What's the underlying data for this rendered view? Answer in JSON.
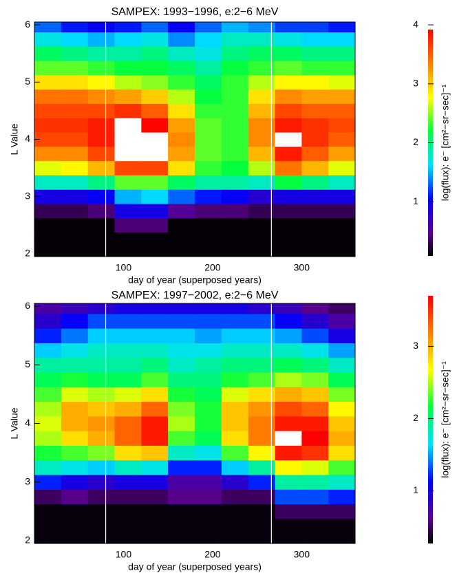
{
  "chart_data": [
    {
      "type": "heatmap",
      "title": "SAMPEX: 1993−1996, e:2−6 MeV",
      "xlabel": "day of year (superposed years)",
      "ylabel": "L Value",
      "x": [
        15,
        45,
        75,
        105,
        135,
        165,
        195,
        225,
        255,
        285,
        315,
        345
      ],
      "y": [
        2.0,
        2.25,
        2.5,
        2.75,
        3.0,
        3.25,
        3.5,
        3.75,
        4.0,
        4.25,
        4.5,
        4.75,
        5.0,
        5.25,
        5.5,
        5.75,
        6.0
      ],
      "z": [
        [
          0.1,
          0.1,
          0.1,
          0.1,
          0.1,
          0.1,
          0.1,
          0.1,
          0.1,
          0.1,
          0.1,
          0.1
        ],
        [
          0.1,
          0.1,
          0.1,
          0.1,
          0.1,
          0.1,
          0.1,
          0.1,
          0.1,
          0.1,
          0.1,
          0.1
        ],
        [
          0.1,
          0.1,
          0.1,
          0.4,
          0.4,
          0.1,
          0.1,
          0.1,
          0.1,
          0.1,
          0.1,
          0.1
        ],
        [
          0.3,
          0.3,
          0.4,
          0.9,
          0.9,
          0.5,
          0.4,
          0.4,
          0.3,
          0.3,
          0.3,
          0.3
        ],
        [
          0.9,
          0.9,
          1.0,
          1.5,
          1.6,
          1.3,
          1.1,
          1.0,
          0.8,
          0.9,
          0.9,
          0.9
        ],
        [
          1.8,
          1.8,
          2.0,
          2.4,
          2.4,
          2.1,
          1.9,
          1.9,
          1.8,
          2.2,
          2.0,
          1.8
        ],
        [
          2.7,
          2.8,
          3.1,
          3.6,
          3.6,
          2.9,
          2.3,
          2.2,
          2.6,
          3.4,
          3.1,
          2.7
        ],
        [
          3.3,
          3.3,
          3.6,
          4.1,
          4.1,
          3.2,
          2.4,
          2.3,
          3.1,
          3.8,
          3.5,
          3.2
        ],
        [
          3.6,
          3.6,
          3.8,
          4.3,
          4.2,
          3.3,
          2.4,
          2.3,
          3.3,
          4.0,
          3.7,
          3.5
        ],
        [
          3.7,
          3.7,
          3.8,
          4.2,
          3.9,
          3.2,
          2.4,
          2.3,
          3.3,
          3.8,
          3.7,
          3.6
        ],
        [
          3.6,
          3.6,
          3.6,
          3.7,
          3.5,
          2.9,
          2.3,
          2.3,
          3.1,
          3.6,
          3.5,
          3.5
        ],
        [
          3.4,
          3.4,
          3.3,
          3.2,
          3.0,
          2.6,
          2.2,
          2.3,
          2.9,
          3.3,
          3.2,
          3.2
        ],
        [
          2.9,
          2.9,
          2.8,
          2.6,
          2.5,
          2.3,
          2.1,
          2.3,
          2.6,
          2.8,
          2.8,
          2.7
        ],
        [
          2.4,
          2.4,
          2.3,
          2.2,
          2.2,
          2.1,
          1.9,
          2.2,
          2.3,
          2.4,
          2.3,
          2.3
        ],
        [
          2.1,
          2.0,
          1.9,
          1.9,
          2.0,
          1.8,
          1.7,
          2.0,
          2.1,
          2.1,
          2.0,
          2.0
        ],
        [
          1.7,
          1.6,
          1.5,
          1.6,
          1.7,
          1.4,
          1.6,
          1.8,
          1.8,
          1.7,
          1.6,
          1.6
        ],
        [
          1.3,
          1.1,
          1.0,
          1.1,
          1.3,
          1.0,
          1.3,
          1.5,
          1.4,
          1.2,
          1.2,
          1.1
        ]
      ],
      "xlim": [
        0,
        360
      ],
      "ylim": [
        1.95,
        6.05
      ],
      "xticks": [
        100,
        200,
        300
      ],
      "yticks": [
        2,
        3,
        4,
        5,
        6
      ],
      "vlines": [
        80,
        266
      ],
      "colorbar": {
        "label": "log(flux): e⁻ [cm²−sr−sec]⁻¹",
        "zlim": [
          0.08,
          3.92
        ],
        "zticks": [
          1,
          2,
          3,
          4
        ]
      }
    },
    {
      "type": "heatmap",
      "title": "SAMPEX: 1997−2002, e:2−6 MeV",
      "xlabel": "day of year (superposed years)",
      "ylabel": "L Value",
      "x": [
        15,
        45,
        75,
        105,
        135,
        165,
        195,
        225,
        255,
        285,
        315,
        345
      ],
      "y": [
        2.0,
        2.25,
        2.5,
        2.75,
        3.0,
        3.25,
        3.5,
        3.75,
        4.0,
        4.25,
        4.5,
        4.75,
        5.0,
        5.25,
        5.5,
        5.75,
        6.0
      ],
      "z": [
        [
          0.3,
          0.3,
          0.3,
          0.3,
          0.3,
          0.3,
          0.3,
          0.3,
          0.3,
          0.3,
          0.3,
          0.3
        ],
        [
          0.3,
          0.3,
          0.3,
          0.3,
          0.3,
          0.3,
          0.3,
          0.3,
          0.3,
          0.3,
          0.3,
          0.3
        ],
        [
          0.3,
          0.3,
          0.3,
          0.3,
          0.3,
          0.3,
          0.3,
          0.3,
          0.3,
          0.5,
          0.5,
          0.5
        ],
        [
          0.5,
          0.6,
          0.5,
          0.5,
          0.5,
          0.6,
          0.6,
          0.5,
          0.5,
          1.3,
          1.3,
          1.2
        ],
        [
          1.2,
          1.0,
          0.9,
          1.0,
          1.0,
          0.7,
          0.7,
          0.9,
          1.2,
          1.9,
          1.9,
          1.8
        ],
        [
          1.8,
          1.7,
          1.6,
          1.8,
          1.7,
          1.2,
          1.2,
          1.6,
          1.9,
          2.7,
          2.6,
          2.3
        ],
        [
          2.2,
          2.3,
          2.4,
          2.8,
          2.9,
          1.8,
          1.7,
          2.3,
          2.7,
          3.6,
          3.5,
          2.8
        ],
        [
          2.5,
          2.8,
          3.0,
          3.3,
          3.6,
          2.3,
          2.1,
          2.8,
          3.2,
          3.8,
          3.7,
          3.0
        ],
        [
          2.6,
          3.0,
          3.1,
          3.3,
          3.6,
          2.5,
          2.2,
          2.9,
          3.2,
          3.6,
          3.6,
          2.9
        ],
        [
          2.5,
          3.0,
          2.9,
          3.0,
          3.3,
          2.4,
          2.2,
          2.9,
          3.1,
          3.4,
          3.3,
          2.7
        ],
        [
          2.3,
          2.6,
          2.5,
          2.6,
          2.8,
          2.2,
          2.1,
          2.6,
          2.8,
          3.0,
          2.9,
          2.4
        ],
        [
          2.1,
          2.2,
          2.1,
          2.1,
          2.3,
          2.0,
          2.0,
          2.2,
          2.3,
          2.5,
          2.4,
          2.1
        ],
        [
          1.9,
          1.9,
          1.9,
          1.9,
          2.0,
          1.8,
          1.9,
          2.0,
          2.0,
          2.1,
          2.0,
          1.8
        ],
        [
          1.6,
          1.7,
          1.8,
          1.8,
          1.8,
          1.7,
          1.7,
          1.8,
          1.8,
          1.8,
          1.7,
          1.5
        ],
        [
          1.2,
          1.4,
          1.6,
          1.6,
          1.6,
          1.6,
          1.5,
          1.6,
          1.6,
          1.5,
          1.3,
          1.0
        ],
        [
          0.9,
          1.1,
          1.3,
          1.3,
          1.3,
          1.3,
          1.3,
          1.3,
          1.3,
          1.1,
          0.9,
          0.7
        ],
        [
          0.7,
          0.8,
          0.9,
          1.0,
          1.0,
          1.0,
          1.0,
          1.0,
          0.9,
          0.8,
          0.6,
          0.5
        ]
      ],
      "xlim": [
        0,
        360
      ],
      "ylim": [
        1.95,
        6.05
      ],
      "xticks": [
        100,
        200,
        300
      ],
      "yticks": [
        2,
        3,
        4,
        5,
        6
      ],
      "vlines": [
        80,
        266
      ],
      "colorbar": {
        "label": "log(flux): e⁻ [cm²−sr−sec]⁻¹",
        "zlim": [
          0.27,
          3.7
        ],
        "zticks": [
          1,
          2,
          3
        ]
      }
    }
  ]
}
